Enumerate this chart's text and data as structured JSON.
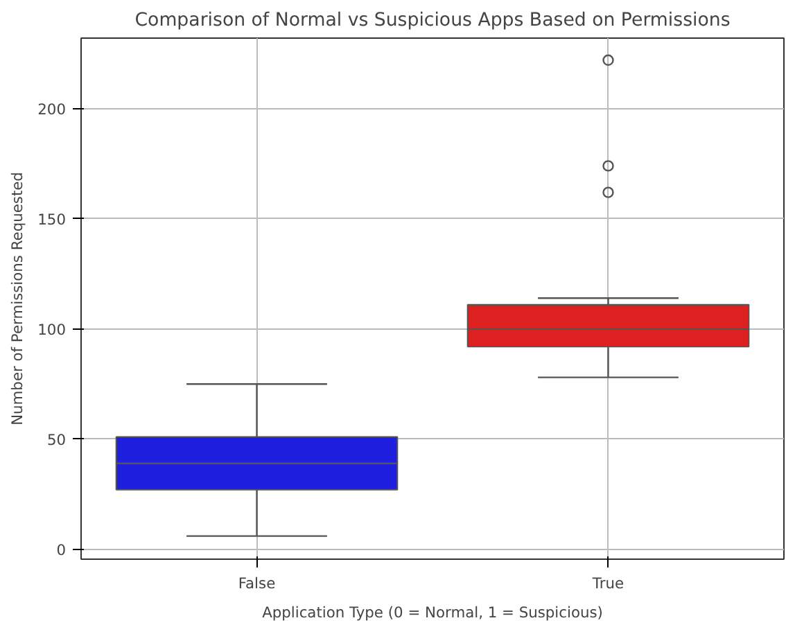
{
  "chart_data": {
    "type": "box",
    "title": "Comparison of Normal vs Suspicious Apps Based on Permissions",
    "xlabel": "Application Type (0 = Normal, 1 = Suspicious)",
    "ylabel": "Number of Permissions Requested",
    "categories": [
      "False",
      "True"
    ],
    "colors": [
      "#1f1fdf",
      "#dd2020"
    ],
    "boxes": [
      {
        "low": 6,
        "q1": 27,
        "median": 39,
        "q3": 51,
        "high": 75
      },
      {
        "low": 78,
        "q1": 92,
        "median": 100,
        "q3": 111,
        "high": 114,
        "outliers": [
          162,
          174,
          222
        ]
      }
    ],
    "ylim": [
      -4.5,
      232
    ],
    "yticks": [
      0,
      50,
      100,
      150,
      200
    ],
    "grid": true
  }
}
